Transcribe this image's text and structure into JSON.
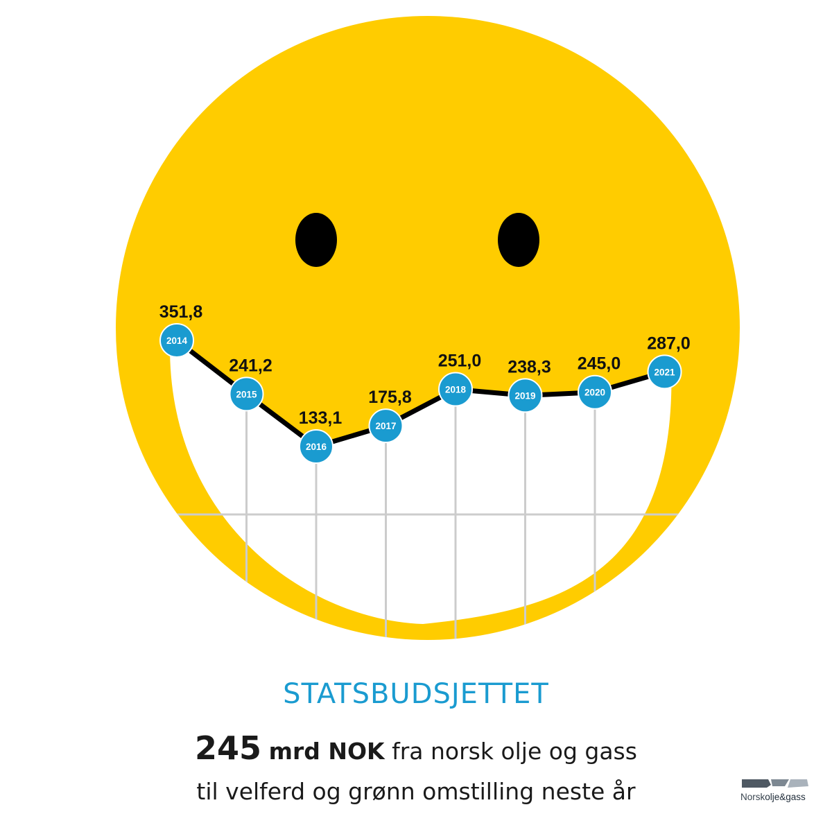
{
  "colors": {
    "face": "#FFCC00",
    "eyes": "#000000",
    "line": "#000000",
    "marker": "#1A9BD0",
    "grid": "#CCCCCC",
    "heading": "#1A9BD0",
    "text": "#1A1A1A"
  },
  "chart_data": {
    "type": "line",
    "title": "",
    "xlabel": "",
    "ylabel": "",
    "ylim": [
      0,
      400
    ],
    "grid": true,
    "categories": [
      "2014",
      "2015",
      "2016",
      "2017",
      "2018",
      "2019",
      "2020",
      "2021"
    ],
    "values": [
      351.8,
      241.2,
      133.1,
      175.8,
      251.0,
      238.3,
      245.0,
      287.0
    ],
    "value_labels": [
      "351,8",
      "241,2",
      "133,1",
      "175,8",
      "251,0",
      "238,3",
      "245,0",
      "287,0"
    ]
  },
  "heading": "STATSBUDSJETTET",
  "summary": {
    "amount": "245",
    "unit": "mrd NOK",
    "rest": " fra norsk olje og gass",
    "line2": "til velferd og grønn omstilling neste år"
  },
  "logo": {
    "text_part1": "Norsk",
    "text_part2": "olje&gass"
  }
}
